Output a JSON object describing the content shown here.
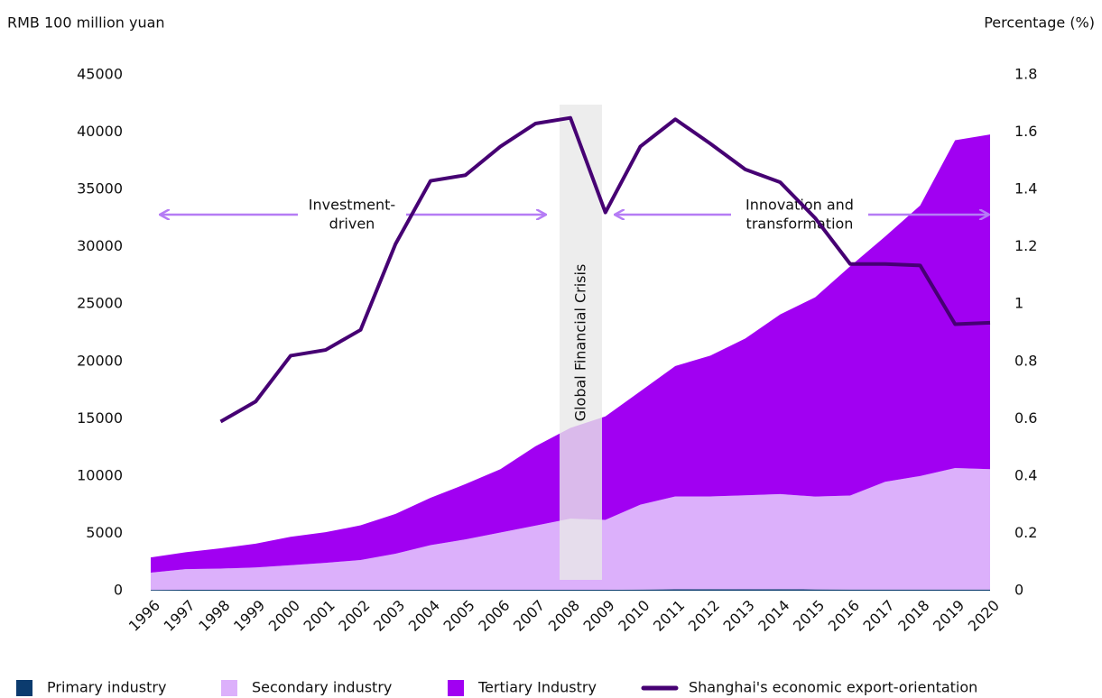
{
  "chart_data": {
    "type": "area",
    "y_label": "RMB 100 million yuan",
    "y2_label": "Percentage (%)",
    "categories": [
      "1996",
      "1997",
      "1998",
      "1999",
      "2000",
      "2001",
      "2002",
      "2003",
      "2004",
      "2005",
      "2006",
      "2007",
      "2008",
      "2009",
      "2010",
      "2011",
      "2012",
      "2013",
      "2014",
      "2015",
      "2016",
      "2017",
      "2018",
      "2019",
      "2020"
    ],
    "series": [
      {
        "name": "Primary industry",
        "color": "#0b3b6e",
        "stacked": true,
        "values": [
          70,
          75,
          75,
          75,
          75,
          75,
          75,
          75,
          75,
          75,
          75,
          75,
          80,
          80,
          100,
          120,
          125,
          115,
          125,
          110,
          100,
          100,
          100,
          100,
          100
        ]
      },
      {
        "name": "Secondary industry",
        "color": "#dcb0fb",
        "stacked": true,
        "values": [
          1500,
          1800,
          1850,
          1950,
          2150,
          2350,
          2600,
          3150,
          3900,
          4400,
          5000,
          5600,
          6200,
          6100,
          7400,
          8100,
          8100,
          8200,
          8300,
          8100,
          8200,
          9400,
          9900,
          10600,
          10500
        ]
      },
      {
        "name": "Tertiary Industry",
        "color": "#a100f2",
        "stacked": true,
        "values": [
          1330,
          1475,
          1775,
          2075,
          2475,
          2675,
          3025,
          3475,
          4125,
          4825,
          5525,
          6925,
          7920,
          9020,
          9900,
          11380,
          12275,
          13685,
          15675,
          17390,
          20000,
          21400,
          23600,
          28600,
          29200
        ]
      },
      {
        "name": "Shanghai's economic export-orientation",
        "color": "#460073",
        "type": "line",
        "axis": "y2",
        "values": [
          null,
          null,
          0.59,
          0.66,
          0.82,
          0.84,
          0.91,
          1.21,
          1.43,
          1.45,
          1.55,
          1.63,
          1.65,
          1.32,
          1.55,
          1.645,
          1.56,
          1.47,
          1.425,
          1.3,
          1.14,
          1.14,
          1.135,
          0.93,
          0.935
        ]
      }
    ],
    "ylim": [
      0,
      45000
    ],
    "yticks": [
      0,
      5000,
      10000,
      15000,
      20000,
      25000,
      30000,
      35000,
      40000,
      45000
    ],
    "y2lim": [
      0,
      1.8
    ],
    "y2ticks": [
      0,
      0.2,
      0.4,
      0.6,
      0.8,
      1,
      1.2,
      1.4,
      1.6,
      1.8
    ],
    "annotations": {
      "crisis": "Global Financial Crisis",
      "investment": [
        "Investment-",
        "driven"
      ],
      "innovation": [
        "Innovation and",
        "transformation"
      ]
    },
    "legend": "bottom"
  }
}
